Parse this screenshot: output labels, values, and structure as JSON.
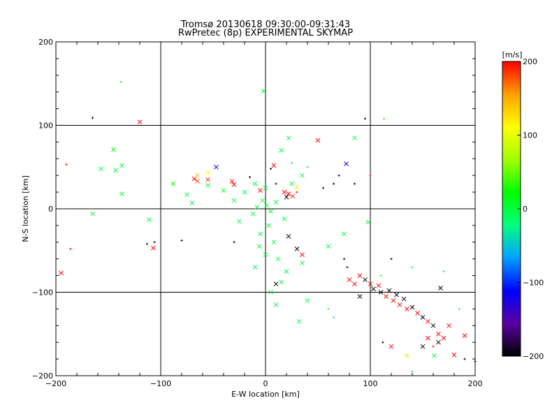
{
  "chart_data": {
    "type": "scatter",
    "title": "Tromsø 20130618 09:30:00-09:31:43",
    "subtitle": "RwPretec (8p) EXPERIMENTAL SKYMAP",
    "xlabel": "E-W location [km]",
    "ylabel": "N-S location [km]",
    "xlim": [
      -200,
      200
    ],
    "ylim": [
      -200,
      200
    ],
    "xticks": [
      -200,
      -100,
      0,
      100,
      200
    ],
    "yticks": [
      -200,
      -100,
      0,
      100,
      200
    ],
    "xtick_labels": [
      "−200",
      "−100",
      "0",
      "100",
      "200"
    ],
    "ytick_labels": [
      "−200",
      "−100",
      "0",
      "100",
      "200"
    ],
    "grid": true,
    "grid_lines_x": [
      -100,
      0,
      100
    ],
    "grid_lines_y": [
      -100,
      0,
      100
    ],
    "colorbar": {
      "label": "[m/s]",
      "range": [
        -200,
        200
      ],
      "ticks": [
        200,
        100,
        0,
        -100,
        -200
      ],
      "tick_labels": [
        "200",
        "100",
        "0",
        "−100",
        "−200"
      ],
      "colormap": [
        "#000000",
        "#5a00a0",
        "#0000ff",
        "#00a0ff",
        "#00ff7f",
        "#00ff00",
        "#a0ff00",
        "#ffff00",
        "#ffa000",
        "#ff0000"
      ]
    },
    "marker_types": [
      "x",
      "+"
    ],
    "points": [
      {
        "x": 1,
        "y": 4,
        "v": 0,
        "m": "x"
      },
      {
        "x": -8,
        "y": 2,
        "v": 0,
        "m": "x"
      },
      {
        "x": 5,
        "y": -3,
        "v": 0,
        "m": "x"
      },
      {
        "x": -3,
        "y": 10,
        "v": 0,
        "m": "x"
      },
      {
        "x": 10,
        "y": 8,
        "v": 0,
        "m": "x"
      },
      {
        "x": -12,
        "y": -6,
        "v": 0,
        "m": "x"
      },
      {
        "x": 3,
        "y": -20,
        "v": 0,
        "m": "x"
      },
      {
        "x": -5,
        "y": -30,
        "v": 0,
        "m": "x"
      },
      {
        "x": 8,
        "y": -40,
        "v": 0,
        "m": "x"
      },
      {
        "x": 0,
        "y": -55,
        "v": 0,
        "m": "x"
      },
      {
        "x": 12,
        "y": -60,
        "v": 0,
        "m": "x"
      },
      {
        "x": -10,
        "y": -70,
        "v": 0,
        "m": "x"
      },
      {
        "x": 20,
        "y": -75,
        "v": 0,
        "m": "x"
      },
      {
        "x": 15,
        "y": -88,
        "v": 0,
        "m": "x"
      },
      {
        "x": 5,
        "y": -100,
        "v": 0,
        "m": "x"
      },
      {
        "x": -20,
        "y": 20,
        "v": 0,
        "m": "x"
      },
      {
        "x": -30,
        "y": 10,
        "v": 0,
        "m": "x"
      },
      {
        "x": 25,
        "y": 30,
        "v": 0,
        "m": "x"
      },
      {
        "x": 35,
        "y": 40,
        "v": 0,
        "m": "x"
      },
      {
        "x": 15,
        "y": 70,
        "v": 0,
        "m": "x"
      },
      {
        "x": 22,
        "y": 85,
        "v": 0,
        "m": "x"
      },
      {
        "x": -2,
        "y": 141,
        "v": 0,
        "m": "x"
      },
      {
        "x": -137,
        "y": 18,
        "v": 0,
        "m": "x"
      },
      {
        "x": -143,
        "y": 46,
        "v": 0,
        "m": "x"
      },
      {
        "x": -145,
        "y": 71,
        "v": 20,
        "m": "x"
      },
      {
        "x": -157,
        "y": 48,
        "v": 0,
        "m": "x"
      },
      {
        "x": -165,
        "y": -6,
        "v": 0,
        "m": "x"
      },
      {
        "x": -111,
        "y": -13,
        "v": 0,
        "m": "x"
      },
      {
        "x": -137,
        "y": 52,
        "v": 0,
        "m": "x"
      },
      {
        "x": -75,
        "y": 17,
        "v": 0,
        "m": "x"
      },
      {
        "x": -70,
        "y": 7,
        "v": 0,
        "m": "x"
      },
      {
        "x": -88,
        "y": 30,
        "v": 20,
        "m": "x"
      },
      {
        "x": -55,
        "y": 28,
        "v": 0,
        "m": "x"
      },
      {
        "x": -40,
        "y": 22,
        "v": 0,
        "m": "x"
      },
      {
        "x": 85,
        "y": 85,
        "v": 0,
        "m": "x"
      },
      {
        "x": 98,
        "y": -16,
        "v": 0,
        "m": "x"
      },
      {
        "x": 75,
        "y": -30,
        "v": 0,
        "m": "x"
      },
      {
        "x": 60,
        "y": -45,
        "v": 0,
        "m": "x"
      },
      {
        "x": 35,
        "y": -65,
        "v": 0,
        "m": "x"
      },
      {
        "x": 32,
        "y": -135,
        "v": 0,
        "m": "x"
      },
      {
        "x": 161,
        "y": -176,
        "v": 0,
        "m": "x"
      },
      {
        "x": 40,
        "y": -110,
        "v": 0,
        "m": "x"
      },
      {
        "x": -10,
        "y": 30,
        "v": 0,
        "m": "x"
      },
      {
        "x": 0,
        "y": 25,
        "v": 0,
        "m": "x"
      },
      {
        "x": -25,
        "y": -15,
        "v": 0,
        "m": "x"
      },
      {
        "x": 18,
        "y": -12,
        "v": 0,
        "m": "x"
      },
      {
        "x": -6,
        "y": -45,
        "v": 0,
        "m": "x"
      },
      {
        "x": 10,
        "y": -115,
        "v": 0,
        "m": "x"
      },
      {
        "x": -120,
        "y": 104,
        "v": 200,
        "m": "x"
      },
      {
        "x": -195,
        "y": -77,
        "v": 200,
        "m": "x"
      },
      {
        "x": -107,
        "y": -47,
        "v": 200,
        "m": "x"
      },
      {
        "x": -65,
        "y": 33,
        "v": 180,
        "m": "x"
      },
      {
        "x": -68,
        "y": 36,
        "v": 200,
        "m": "x"
      },
      {
        "x": -55,
        "y": 35,
        "v": 190,
        "m": "x"
      },
      {
        "x": -32,
        "y": 33,
        "v": 200,
        "m": "x"
      },
      {
        "x": -30,
        "y": 29,
        "v": 200,
        "m": "x"
      },
      {
        "x": -5,
        "y": 22,
        "v": 200,
        "m": "x"
      },
      {
        "x": 8,
        "y": 52,
        "v": 200,
        "m": "x"
      },
      {
        "x": 18,
        "y": 20,
        "v": 200,
        "m": "x"
      },
      {
        "x": 22,
        "y": 18,
        "v": 200,
        "m": "x"
      },
      {
        "x": 26,
        "y": 15,
        "v": 190,
        "m": "x"
      },
      {
        "x": 50,
        "y": 82,
        "v": 200,
        "m": "x"
      },
      {
        "x": 30,
        "y": 26,
        "v": 120,
        "m": "x"
      },
      {
        "x": -55,
        "y": 43,
        "v": 110,
        "m": "x"
      },
      {
        "x": -47,
        "y": 50,
        "v": -120,
        "m": "x"
      },
      {
        "x": 77,
        "y": 54,
        "v": -120,
        "m": "x"
      },
      {
        "x": 20,
        "y": 14,
        "v": -200,
        "m": "x"
      },
      {
        "x": -65,
        "y": 40,
        "v": 150,
        "m": "x"
      },
      {
        "x": 135,
        "y": -176,
        "v": 80,
        "m": "x"
      },
      {
        "x": 90,
        "y": -80,
        "v": 200,
        "m": "x"
      },
      {
        "x": 95,
        "y": -85,
        "v": -200,
        "m": "x"
      },
      {
        "x": 100,
        "y": -90,
        "v": 200,
        "m": "x"
      },
      {
        "x": 103,
        "y": -96,
        "v": -200,
        "m": "x"
      },
      {
        "x": 108,
        "y": -92,
        "v": 200,
        "m": "x"
      },
      {
        "x": 110,
        "y": -100,
        "v": -200,
        "m": "x"
      },
      {
        "x": 115,
        "y": -105,
        "v": 200,
        "m": "x"
      },
      {
        "x": 118,
        "y": -98,
        "v": -200,
        "m": "x"
      },
      {
        "x": 122,
        "y": -110,
        "v": 200,
        "m": "x"
      },
      {
        "x": 125,
        "y": -103,
        "v": -200,
        "m": "x"
      },
      {
        "x": 128,
        "y": -115,
        "v": 200,
        "m": "x"
      },
      {
        "x": 132,
        "y": -108,
        "v": -200,
        "m": "x"
      },
      {
        "x": 135,
        "y": -120,
        "v": 200,
        "m": "x"
      },
      {
        "x": 140,
        "y": -118,
        "v": -200,
        "m": "x"
      },
      {
        "x": 145,
        "y": -125,
        "v": 200,
        "m": "x"
      },
      {
        "x": 150,
        "y": -130,
        "v": -200,
        "m": "x"
      },
      {
        "x": 155,
        "y": -135,
        "v": 200,
        "m": "x"
      },
      {
        "x": 160,
        "y": -140,
        "v": -200,
        "m": "x"
      },
      {
        "x": 165,
        "y": -150,
        "v": 200,
        "m": "x"
      },
      {
        "x": 170,
        "y": -155,
        "v": 200,
        "m": "x"
      },
      {
        "x": 175,
        "y": -140,
        "v": 200,
        "m": "x"
      },
      {
        "x": 190,
        "y": -152,
        "v": 200,
        "m": "x"
      },
      {
        "x": 165,
        "y": -160,
        "v": -200,
        "m": "x"
      },
      {
        "x": 150,
        "y": -165,
        "v": -200,
        "m": "x"
      },
      {
        "x": 155,
        "y": -155,
        "v": 200,
        "m": "x"
      },
      {
        "x": 120,
        "y": -165,
        "v": 200,
        "m": "x"
      },
      {
        "x": 180,
        "y": -175,
        "v": 200,
        "m": "x"
      },
      {
        "x": 167,
        "y": -95,
        "v": -200,
        "m": "x"
      },
      {
        "x": 85,
        "y": -90,
        "v": 200,
        "m": "x"
      },
      {
        "x": 80,
        "y": -85,
        "v": 200,
        "m": "x"
      },
      {
        "x": 90,
        "y": -105,
        "v": -200,
        "m": "x"
      },
      {
        "x": 30,
        "y": -48,
        "v": -200,
        "m": "x"
      },
      {
        "x": 22,
        "y": -33,
        "v": -200,
        "m": "x"
      },
      {
        "x": 10,
        "y": -90,
        "v": -200,
        "m": "x"
      },
      {
        "x": 35,
        "y": -55,
        "v": 200,
        "m": "x"
      },
      {
        "x": -165,
        "y": 109,
        "v": -200,
        "m": "+"
      },
      {
        "x": -190,
        "y": 53,
        "v": 200,
        "m": "+"
      },
      {
        "x": -186,
        "y": -48,
        "v": 200,
        "m": "+"
      },
      {
        "x": -113,
        "y": -42,
        "v": -200,
        "m": "+"
      },
      {
        "x": -106,
        "y": -40,
        "v": -200,
        "m": "+"
      },
      {
        "x": -80,
        "y": -38,
        "v": -200,
        "m": "+"
      },
      {
        "x": -138,
        "y": 152,
        "v": 0,
        "m": "+"
      },
      {
        "x": 95,
        "y": 108,
        "v": -200,
        "m": "+"
      },
      {
        "x": 113,
        "y": 108,
        "v": 0,
        "m": "+"
      },
      {
        "x": 70,
        "y": 40,
        "v": -200,
        "m": "+"
      },
      {
        "x": 85,
        "y": 30,
        "v": -200,
        "m": "+"
      },
      {
        "x": 100,
        "y": 40,
        "v": 200,
        "m": "+"
      },
      {
        "x": 65,
        "y": 30,
        "v": -200,
        "m": "+"
      },
      {
        "x": 55,
        "y": 25,
        "v": -200,
        "m": "+"
      },
      {
        "x": 120,
        "y": -60,
        "v": -200,
        "m": "+"
      },
      {
        "x": 140,
        "y": -70,
        "v": 0,
        "m": "+"
      },
      {
        "x": 170,
        "y": -75,
        "v": 0,
        "m": "+"
      },
      {
        "x": 190,
        "y": -180,
        "v": -200,
        "m": "+"
      },
      {
        "x": 200,
        "y": -183,
        "v": -200,
        "m": "+"
      },
      {
        "x": 140,
        "y": -195,
        "v": 0,
        "m": "+"
      },
      {
        "x": 60,
        "y": -120,
        "v": 0,
        "m": "+"
      },
      {
        "x": 65,
        "y": -130,
        "v": 0,
        "m": "+"
      },
      {
        "x": 185,
        "y": -120,
        "v": 0,
        "m": "+"
      },
      {
        "x": 160,
        "y": -165,
        "v": 200,
        "m": "+"
      },
      {
        "x": 112,
        "y": -160,
        "v": -200,
        "m": "+"
      },
      {
        "x": 110,
        "y": -80,
        "v": 0,
        "m": "+"
      },
      {
        "x": 75,
        "y": -60,
        "v": -200,
        "m": "+"
      },
      {
        "x": 78,
        "y": -70,
        "v": -200,
        "m": "+"
      },
      {
        "x": -15,
        "y": 38,
        "v": -200,
        "m": "+"
      },
      {
        "x": 10,
        "y": 30,
        "v": -200,
        "m": "+"
      },
      {
        "x": 30,
        "y": 20,
        "v": 200,
        "m": "+"
      },
      {
        "x": 5,
        "y": 48,
        "v": -200,
        "m": "+"
      },
      {
        "x": -30,
        "y": -40,
        "v": -200,
        "m": "+"
      },
      {
        "x": 40,
        "y": 50,
        "v": 0,
        "m": "+"
      },
      {
        "x": 25,
        "y": 55,
        "v": 0,
        "m": "+"
      }
    ]
  }
}
